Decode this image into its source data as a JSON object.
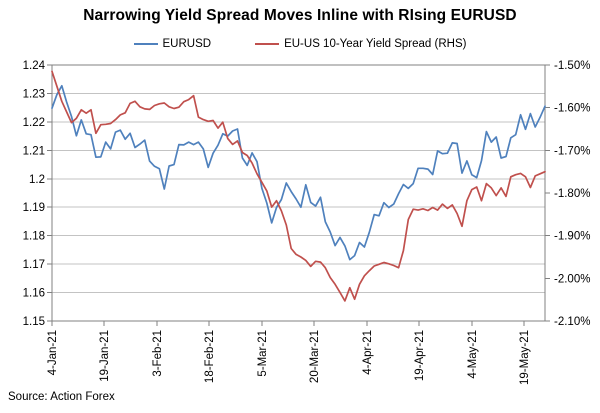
{
  "title": "Narrowing Yield Spread Moves Inline with RIsing EURUSD",
  "source": "Source: Action Forex",
  "legend": [
    {
      "label": "EURUSD",
      "color": "#4f81bd"
    },
    {
      "label": "EU-US 10-Year Yield Spread (RHS)",
      "color": "#c0504d"
    }
  ],
  "colors": {
    "eurusd_line": "#4f81bd",
    "spread_line": "#c0504d",
    "gridline": "#c3c3c3",
    "axis": "#808080",
    "label_text": "#000000"
  },
  "chart_data": {
    "type": "line",
    "title": "Narrowing Yield Spread Moves Inline with RIsing EURUSD",
    "grid": true,
    "legend_position": "top",
    "x_tick_labels": [
      "4-Jan-21",
      "19-Jan-21",
      "3-Feb-21",
      "18-Feb-21",
      "5-Mar-21",
      "20-Mar-21",
      "4-Apr-21",
      "19-Apr-21",
      "4-May-21",
      "19-May-21"
    ],
    "x_tick_pos": [
      0,
      10.7,
      21.5,
      32.2,
      43,
      53.7,
      64.5,
      75.2,
      86,
      96.7
    ],
    "left_axis": {
      "min": 1.15,
      "max": 1.24,
      "step": 0.01,
      "tick_labels": [
        "1.24",
        "1.23",
        "1.22",
        "1.21",
        "1.2",
        "1.19",
        "1.18",
        "1.17",
        "1.16",
        "1.15"
      ]
    },
    "right_axis": {
      "min": -2.1,
      "max": -1.5,
      "step": 0.1,
      "tick_labels": [
        "-1.50%",
        "-1.60%",
        "-1.70%",
        "-1.80%",
        "-1.90%",
        "-2.00%",
        "-2.10%"
      ]
    },
    "series": [
      {
        "name": "EURUSD",
        "axis": "left",
        "color": "#4f81bd",
        "values": [
          1.2248,
          1.2296,
          1.2327,
          1.227,
          1.2219,
          1.2151,
          1.2207,
          1.2158,
          1.2155,
          1.2076,
          1.2077,
          1.2129,
          1.2105,
          1.2164,
          1.2171,
          1.2139,
          1.216,
          1.211,
          1.2122,
          1.2136,
          1.2062,
          1.2044,
          1.2035,
          1.1964,
          1.2045,
          1.205,
          1.212,
          1.2119,
          1.2129,
          1.212,
          1.2129,
          1.2105,
          1.204,
          1.209,
          1.2118,
          1.2158,
          1.215,
          1.2168,
          1.2175,
          1.2073,
          1.2047,
          1.2091,
          1.206,
          1.1966,
          1.1915,
          1.1845,
          1.1899,
          1.1927,
          1.1985,
          1.1955,
          1.1929,
          1.19,
          1.1979,
          1.1917,
          1.1904,
          1.1935,
          1.1849,
          1.1813,
          1.1765,
          1.1794,
          1.1764,
          1.1716,
          1.173,
          1.1776,
          1.176,
          1.1812,
          1.1874,
          1.187,
          1.1916,
          1.1899,
          1.1911,
          1.1948,
          1.198,
          1.1966,
          1.1983,
          1.2037,
          1.2037,
          1.2034,
          1.2015,
          1.2098,
          1.2088,
          1.209,
          1.2126,
          1.2124,
          1.202,
          1.2063,
          1.2014,
          1.2004,
          1.2064,
          1.2166,
          1.2129,
          1.2147,
          1.2073,
          1.2078,
          1.2144,
          1.2155,
          1.2225,
          1.2174,
          1.2229,
          1.2182,
          1.2216,
          1.2255
        ]
      },
      {
        "name": "EU-US 10-Year Yield Spread (RHS)",
        "axis": "right",
        "color": "#c0504d",
        "values": [
          -1.515,
          -1.55,
          -1.585,
          -1.61,
          -1.635,
          -1.625,
          -1.605,
          -1.613,
          -1.605,
          -1.66,
          -1.64,
          -1.639,
          -1.637,
          -1.628,
          -1.617,
          -1.612,
          -1.59,
          -1.585,
          -1.598,
          -1.603,
          -1.604,
          -1.595,
          -1.591,
          -1.589,
          -1.598,
          -1.602,
          -1.599,
          -1.586,
          -1.581,
          -1.572,
          -1.622,
          -1.628,
          -1.632,
          -1.63,
          -1.648,
          -1.634,
          -1.672,
          -1.686,
          -1.678,
          -1.705,
          -1.712,
          -1.73,
          -1.755,
          -1.775,
          -1.795,
          -1.833,
          -1.818,
          -1.842,
          -1.875,
          -1.93,
          -1.944,
          -1.95,
          -1.958,
          -1.972,
          -1.96,
          -1.962,
          -1.975,
          -1.998,
          -2.014,
          -2.033,
          -2.053,
          -2.022,
          -2.049,
          -2.014,
          -1.994,
          -1.982,
          -1.971,
          -1.967,
          -1.963,
          -1.966,
          -1.97,
          -1.975,
          -1.935,
          -1.862,
          -1.838,
          -1.84,
          -1.837,
          -1.841,
          -1.834,
          -1.84,
          -1.826,
          -1.836,
          -1.828,
          -1.848,
          -1.878,
          -1.818,
          -1.792,
          -1.786,
          -1.818,
          -1.778,
          -1.788,
          -1.806,
          -1.788,
          -1.808,
          -1.762,
          -1.757,
          -1.754,
          -1.762,
          -1.787,
          -1.76,
          -1.755,
          -1.75
        ]
      }
    ]
  }
}
